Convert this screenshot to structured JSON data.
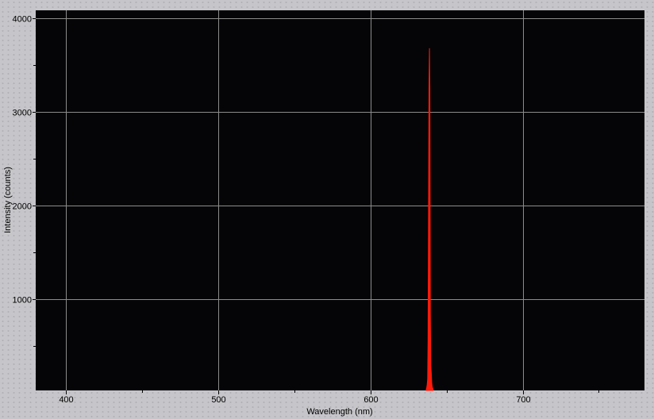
{
  "chart_data": {
    "type": "area",
    "title": "",
    "xlabel": "Wavelength (nm)",
    "ylabel": "Intensity (counts)",
    "xlim": [
      380,
      780
    ],
    "ylim": [
      30,
      4085
    ],
    "xticks": [
      400,
      500,
      600,
      700
    ],
    "yticks": [
      1000,
      2000,
      3000,
      4000
    ],
    "grid": true,
    "background": "#050407",
    "grid_color": "#8c8c8c",
    "series": [
      {
        "color": "#ff1a0a",
        "x": [
          636.6,
          636.9,
          637.2,
          637.5,
          637.8,
          638.1,
          638.4,
          638.7,
          639.0,
          639.3,
          639.6,
          639.9,
          640.2,
          640.5,
          640.8,
          641.1,
          641.4
        ],
        "y": [
          40,
          60,
          90,
          150,
          560,
          1900,
          3250,
          3680,
          3250,
          850,
          300,
          220,
          120,
          70,
          55,
          40,
          30
        ]
      }
    ]
  }
}
